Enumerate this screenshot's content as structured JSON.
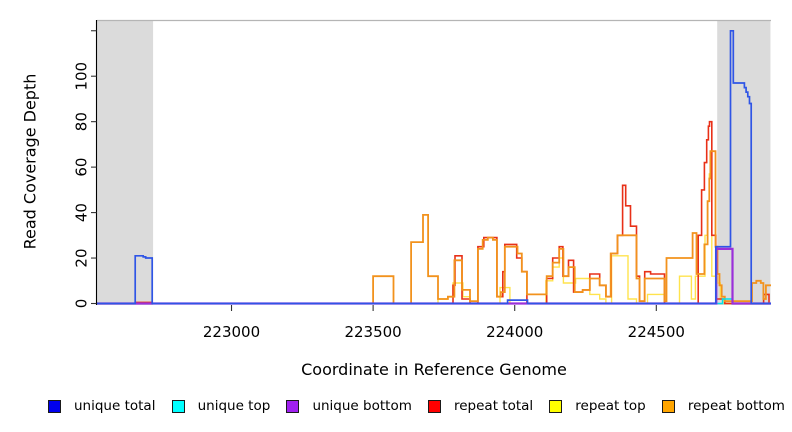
{
  "chart_data": {
    "type": "line",
    "subtype": "step-coverage",
    "title": "",
    "xlabel": "Coordinate in Reference Genome",
    "ylabel": "Read Coverage Depth",
    "xlim": [
      222525,
      224905
    ],
    "ylim": [
      0,
      125
    ],
    "grid": false,
    "legend_position": "bottom",
    "x_ticks": [
      223000,
      223500,
      224000,
      224500
    ],
    "y_ticks": [
      {
        "value": 0,
        "label": "0"
      },
      {
        "value": 20,
        "label": "20"
      },
      {
        "value": 40,
        "label": "40"
      },
      {
        "value": 60,
        "label": "60"
      },
      {
        "value": 80,
        "label": "80"
      },
      {
        "value": 100,
        "label": "100"
      },
      {
        "value": 120,
        "label": ""
      }
    ],
    "masked_region_color": "#DBDBDB",
    "masked_regions": [
      [
        222525,
        222723
      ],
      [
        224715,
        224903
      ]
    ],
    "series": [
      {
        "name": "repeat top",
        "color": "#FFE34D",
        "legend_color": "#FFFF00",
        "points": [
          [
            222525,
            0
          ],
          [
            223729,
            2
          ],
          [
            223764,
            3
          ],
          [
            223782,
            9
          ],
          [
            223817,
            3
          ],
          [
            223842,
            0
          ],
          [
            223948,
            7
          ],
          [
            223983,
            0
          ],
          [
            224110,
            10
          ],
          [
            224134,
            16
          ],
          [
            224157,
            20
          ],
          [
            224172,
            9
          ],
          [
            224215,
            11
          ],
          [
            224265,
            4
          ],
          [
            224300,
            2
          ],
          [
            224322,
            0
          ],
          [
            224342,
            21
          ],
          [
            224400,
            2
          ],
          [
            224430,
            0
          ],
          [
            224469,
            4
          ],
          [
            224529,
            0
          ],
          [
            224582,
            12
          ],
          [
            224624,
            2
          ],
          [
            224638,
            12
          ],
          [
            224665,
            12
          ],
          [
            224672,
            30
          ],
          [
            224681,
            45
          ],
          [
            224687,
            57
          ],
          [
            224696,
            12
          ],
          [
            224716,
            9
          ],
          [
            224726,
            2
          ],
          [
            224740,
            0
          ]
        ]
      },
      {
        "name": "repeat total",
        "color": "#E83018",
        "legend_color": "#FF0000",
        "points": [
          [
            222525,
            0
          ],
          [
            222662,
            0.5
          ],
          [
            222720,
            0
          ],
          [
            223782,
            8
          ],
          [
            223789,
            21
          ],
          [
            223814,
            2
          ],
          [
            223842,
            0
          ],
          [
            223870,
            25
          ],
          [
            223891,
            29
          ],
          [
            223937,
            3
          ],
          [
            223958,
            14
          ],
          [
            223965,
            26
          ],
          [
            224007,
            20
          ],
          [
            224025,
            14
          ],
          [
            224043,
            0
          ],
          [
            224113,
            11
          ],
          [
            224134,
            20
          ],
          [
            224157,
            25
          ],
          [
            224170,
            12
          ],
          [
            224190,
            19
          ],
          [
            224208,
            5
          ],
          [
            224240,
            6
          ],
          [
            224265,
            13
          ],
          [
            224300,
            8
          ],
          [
            224322,
            3
          ],
          [
            224340,
            22
          ],
          [
            224363,
            30
          ],
          [
            224381,
            52
          ],
          [
            224392,
            43
          ],
          [
            224409,
            34
          ],
          [
            224430,
            12
          ],
          [
            224441,
            1
          ],
          [
            224459,
            14
          ],
          [
            224480,
            13
          ],
          [
            224529,
            0
          ],
          [
            224648,
            30
          ],
          [
            224660,
            50
          ],
          [
            224670,
            62
          ],
          [
            224678,
            72
          ],
          [
            224684,
            78
          ],
          [
            224688,
            80
          ],
          [
            224696,
            30
          ],
          [
            224710,
            2
          ],
          [
            224742,
            0
          ],
          [
            224879,
            4
          ],
          [
            224898,
            0
          ]
        ]
      },
      {
        "name": "repeat bottom",
        "color": "#F2921D",
        "legend_color": "#FFA500",
        "points": [
          [
            222525,
            0
          ],
          [
            223500,
            12
          ],
          [
            223572,
            0
          ],
          [
            223634,
            27
          ],
          [
            223676,
            39
          ],
          [
            223694,
            12
          ],
          [
            223729,
            2
          ],
          [
            223764,
            3
          ],
          [
            223787,
            19
          ],
          [
            223814,
            6
          ],
          [
            223842,
            1
          ],
          [
            223870,
            24
          ],
          [
            223887,
            28
          ],
          [
            223905,
            29
          ],
          [
            223923,
            28
          ],
          [
            223937,
            3
          ],
          [
            223951,
            5
          ],
          [
            223965,
            25
          ],
          [
            224010,
            22
          ],
          [
            224025,
            14
          ],
          [
            224043,
            4
          ],
          [
            224113,
            12
          ],
          [
            224134,
            18
          ],
          [
            224157,
            24
          ],
          [
            224172,
            12
          ],
          [
            224190,
            16
          ],
          [
            224212,
            5
          ],
          [
            224240,
            6
          ],
          [
            224265,
            11
          ],
          [
            224300,
            8
          ],
          [
            224322,
            3
          ],
          [
            224339,
            22
          ],
          [
            224363,
            30
          ],
          [
            224430,
            11
          ],
          [
            224441,
            1
          ],
          [
            224459,
            11
          ],
          [
            224529,
            1
          ],
          [
            224536,
            20
          ],
          [
            224628,
            31
          ],
          [
            224642,
            13
          ],
          [
            224670,
            26
          ],
          [
            224681,
            45
          ],
          [
            224687,
            55
          ],
          [
            224691,
            67
          ],
          [
            224709,
            25
          ],
          [
            224716,
            13
          ],
          [
            224723,
            8
          ],
          [
            224731,
            3
          ],
          [
            224742,
            1
          ],
          [
            224838,
            9
          ],
          [
            224853,
            10
          ],
          [
            224869,
            9
          ],
          [
            224878,
            2
          ],
          [
            224887,
            8
          ]
        ]
      },
      {
        "name": "unique top",
        "color": "#00E1EA",
        "legend_color": "#00FFFF",
        "points": [
          [
            222525,
            0
          ],
          [
            224734,
            2
          ],
          [
            224769,
            0
          ]
        ]
      },
      {
        "name": "unique bottom",
        "color": "#9B30D9",
        "legend_color": "#A020F0",
        "points": [
          [
            222525,
            0
          ],
          [
            224712,
            24
          ],
          [
            224769,
            0
          ]
        ]
      },
      {
        "name": "unique total",
        "color": "#2F55E6",
        "legend_color": "#0000EE",
        "points": [
          [
            222525,
            0
          ],
          [
            222660,
            21
          ],
          [
            222688,
            20.5
          ],
          [
            222697,
            20
          ],
          [
            222720,
            0
          ],
          [
            223975,
            1.5
          ],
          [
            224045,
            0
          ],
          [
            224710,
            25
          ],
          [
            224762,
            120
          ],
          [
            224772,
            97
          ],
          [
            224811,
            95
          ],
          [
            224817,
            93
          ],
          [
            224823,
            91
          ],
          [
            224829,
            88
          ],
          [
            224835,
            0
          ]
        ]
      }
    ]
  },
  "axis_titles": {
    "x": "Coordinate in Reference Genome",
    "y": "Read Coverage Depth"
  },
  "legend": {
    "items": [
      {
        "label": "unique total",
        "color": "#0000EE"
      },
      {
        "label": "unique top",
        "color": "#00FFFF"
      },
      {
        "label": "unique bottom",
        "color": "#A020F0"
      },
      {
        "label": "repeat total",
        "color": "#FF0000"
      },
      {
        "label": "repeat top",
        "color": "#FFFF00"
      },
      {
        "label": "repeat bottom",
        "color": "#FFA500"
      }
    ]
  }
}
